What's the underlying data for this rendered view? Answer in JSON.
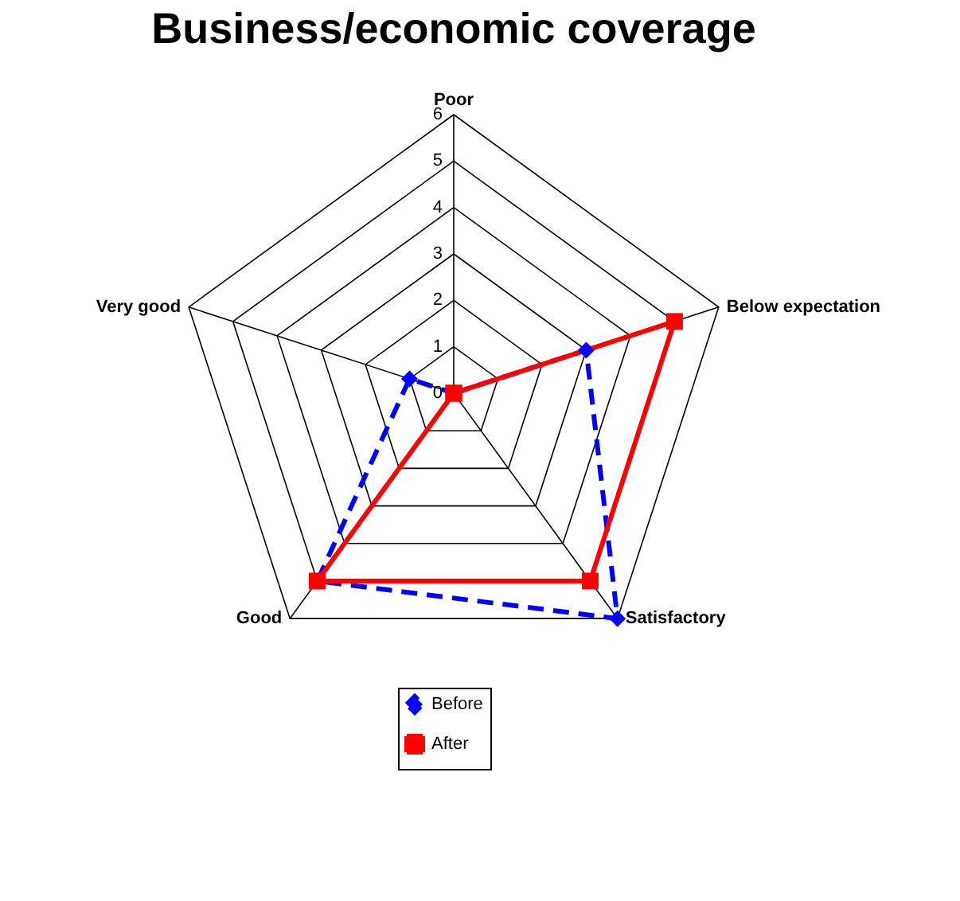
{
  "chart_data": {
    "type": "radar",
    "title": "Business/economic coverage",
    "categories": [
      "Poor",
      "Below expectation",
      "Satisfactory",
      "Good",
      "Very good"
    ],
    "series": [
      {
        "name": "Before",
        "color": "#0000ff",
        "values": [
          0,
          3,
          6,
          5,
          1
        ],
        "marker": "diamond",
        "line_style": "dashed"
      },
      {
        "name": "After",
        "color": "#ff0000",
        "values": [
          0,
          5,
          5,
          5,
          0
        ],
        "marker": "square",
        "line_style": "solid"
      }
    ],
    "ylim": [
      0,
      6
    ],
    "yticks": [
      0,
      1,
      2,
      3,
      4,
      5,
      6
    ],
    "grid": true,
    "legend": "bottom"
  }
}
